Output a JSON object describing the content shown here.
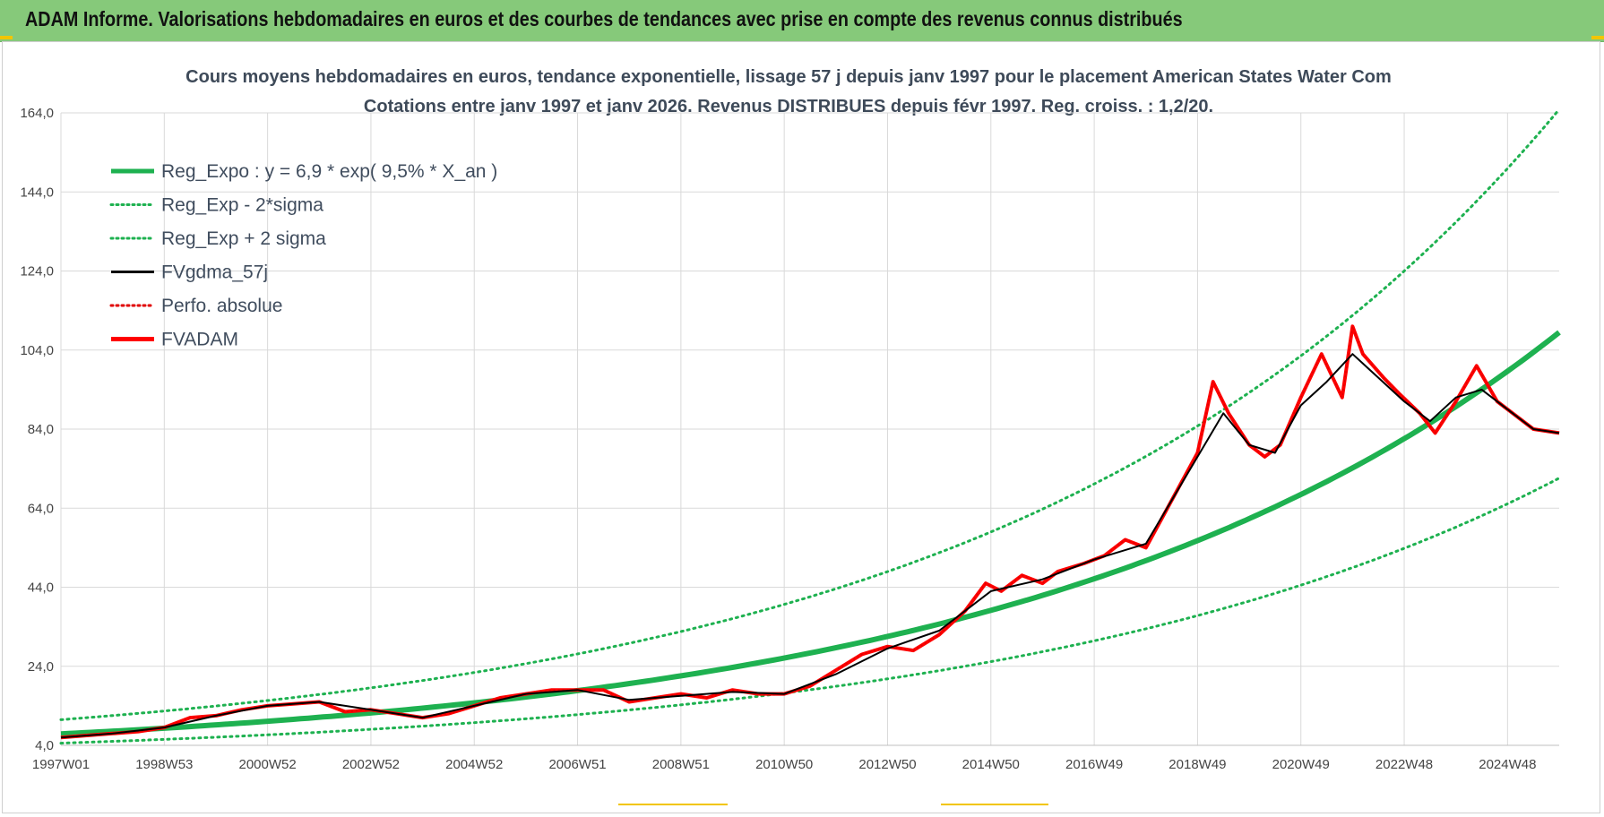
{
  "header": {
    "title": "ADAM Informe. Valorisations hebdomadaires en euros et des courbes de tendances avec prise en compte des revenus connus distribués"
  },
  "colors": {
    "header_bg": "#86c97a",
    "trend_green": "#1eb150",
    "band_green": "#1eb150",
    "smooth_black": "#000000",
    "perf_red": "#e00000",
    "fvadam_red": "#ff0000",
    "grid": "#d9d9d9",
    "accent_yellow": "#f2c500"
  },
  "chart_data": {
    "type": "line",
    "title": "Cours moyens hebdomadaires en euros, tendance exponentielle, lissage 57 j depuis janv 1997  pour le placement American States Water Com",
    "subtitle": "Cotations entre janv 1997 et janv 2026. Revenus DISTRIBUES depuis févr 1997. Reg. croiss. : 1,2/20.",
    "xlabel": "",
    "ylabel": "",
    "x_ticks": [
      "1997W01",
      "1998W53",
      "2000W52",
      "2002W52",
      "2004W52",
      "2006W51",
      "2008W51",
      "2010W50",
      "2012W50",
      "2014W50",
      "2016W49",
      "2018W49",
      "2020W49",
      "2022W48",
      "2024W48"
    ],
    "y_ticks": [
      "4,0",
      "24,0",
      "44,0",
      "64,0",
      "84,0",
      "104,0",
      "124,0",
      "144,0",
      "164,0"
    ],
    "ylim": [
      4,
      164
    ],
    "xlim": [
      1997.0,
      2026.0
    ],
    "grid": true,
    "legend_placement": "top-left",
    "legend": [
      {
        "label": "Reg_Expo : y = 6,9 * exp( 9,5% *  X_an )",
        "style": "solid-thick",
        "color": "#1eb150"
      },
      {
        "label": "Reg_Exp - 2*sigma",
        "style": "dotted",
        "color": "#1eb150"
      },
      {
        "label": "Reg_Exp + 2 sigma",
        "style": "dotted",
        "color": "#1eb150"
      },
      {
        "label": "FVgdma_57j",
        "style": "solid",
        "color": "#000000"
      },
      {
        "label": "Perfo. absolue",
        "style": "dotted",
        "color": "#e00000"
      },
      {
        "label": "FVADAM",
        "style": "solid-thick",
        "color": "#ff0000"
      }
    ],
    "series": [
      {
        "name": "FVADAM",
        "x": [
          1997.0,
          1997.5,
          1998.0,
          1998.5,
          1999.0,
          1999.5,
          2000.0,
          2000.5,
          2001.0,
          2001.5,
          2002.0,
          2002.5,
          2003.0,
          2003.5,
          2004.0,
          2004.5,
          2005.0,
          2005.5,
          2006.0,
          2006.5,
          2007.0,
          2007.5,
          2008.0,
          2008.5,
          2009.0,
          2009.5,
          2010.0,
          2010.5,
          2011.0,
          2011.5,
          2012.0,
          2012.5,
          2013.0,
          2013.5,
          2014.0,
          2014.5,
          2014.9,
          2015.2,
          2015.6,
          2016.0,
          2016.3,
          2016.8,
          2017.2,
          2017.6,
          2018.0,
          2018.5,
          2019.0,
          2019.3,
          2019.6,
          2020.0,
          2020.3,
          2020.6,
          2021.0,
          2021.4,
          2021.8,
          2022.0,
          2022.2,
          2022.6,
          2022.9,
          2023.3,
          2023.6,
          2024.0,
          2024.4,
          2024.8,
          2025.1,
          2025.5,
          2026.0
        ],
        "values": [
          6,
          6.5,
          7,
          7.5,
          8.5,
          11,
          11.5,
          13,
          14,
          14.5,
          15,
          12.5,
          13,
          12,
          11,
          12,
          14,
          16,
          17,
          18,
          18,
          18,
          15,
          16,
          17,
          16,
          18,
          17,
          17,
          19,
          23,
          27,
          29,
          28,
          32,
          38,
          45,
          43,
          47,
          45,
          48,
          50,
          52,
          56,
          54,
          66,
          78,
          96,
          88,
          80,
          77,
          80,
          92,
          103,
          92,
          110,
          103,
          97,
          93,
          88,
          83,
          91,
          100,
          91,
          88,
          84,
          83
        ]
      },
      {
        "name": "FVgdma_57j",
        "x": [
          1997.0,
          1998.0,
          1999.0,
          2000.0,
          2001.0,
          2002.0,
          2003.0,
          2004.0,
          2005.0,
          2006.0,
          2007.0,
          2008.0,
          2009.0,
          2010.0,
          2011.0,
          2012.0,
          2013.0,
          2014.0,
          2015.0,
          2016.0,
          2017.0,
          2018.0,
          2019.0,
          2019.5,
          2020.0,
          2020.5,
          2021.0,
          2021.5,
          2022.0,
          2022.5,
          2023.0,
          2023.5,
          2024.0,
          2024.5,
          2025.0,
          2025.5,
          2026.0
        ],
        "values": [
          6,
          7,
          8.5,
          11.5,
          14,
          15,
          13,
          11,
          14,
          17,
          18,
          15.5,
          16.5,
          17.5,
          17,
          22,
          28.5,
          33,
          43,
          46,
          51,
          55,
          77,
          88,
          80,
          78,
          90,
          96,
          103,
          97,
          91,
          86,
          92,
          94,
          89,
          84,
          83
        ]
      }
    ],
    "trend": {
      "name": "Reg_Expo",
      "formula": "y = 6,9 * exp( 9,5% *  X_an )",
      "a": 6.9,
      "b": 0.095,
      "band_multipliers": [
        0.66,
        1.52
      ]
    }
  }
}
